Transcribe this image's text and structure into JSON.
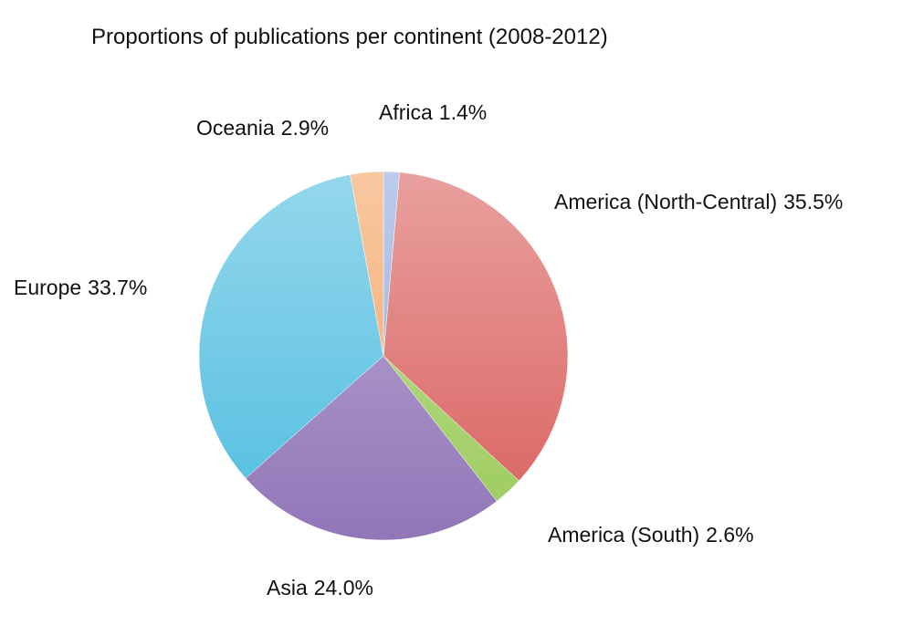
{
  "chart_data": {
    "type": "pie",
    "title": "Proportions of publications per continent (2008-2012)",
    "categories": [
      "Africa",
      "America (North-Central)",
      "America (South)",
      "Asia",
      "Europe",
      "Oceania"
    ],
    "values": [
      1.4,
      35.5,
      2.6,
      24.0,
      33.7,
      2.9
    ],
    "value_labels": [
      "1.4%",
      "35.5%",
      "2.6%",
      "24.0%",
      "33.7%",
      "2.9%"
    ],
    "colors": [
      "#8fa9dc",
      "#d9605e",
      "#9ccb5c",
      "#9176b8",
      "#4fbde0",
      "#f4a463"
    ]
  }
}
